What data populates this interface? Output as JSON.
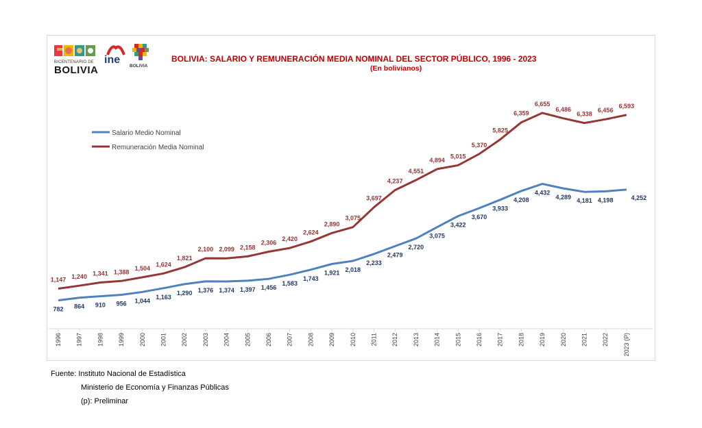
{
  "header": {
    "title": "BOLIVIA: SALARIO Y REMUNERACIÓN MEDIA NOMINAL DEL SECTOR PÚBLICO, 1996 - 2023",
    "subtitle": "(En bolivianos)"
  },
  "logos": {
    "bicentenario_line1": "BICENTENARIO DE",
    "bicentenario_line2": "BOLIVIA",
    "ine": "ine",
    "estado": "BOLIVIA"
  },
  "footer": {
    "line1": "Fuente: Instituto Nacional de Estadística",
    "line2": "Ministerio de Economía y Finanzas Públicas",
    "line3": "(p): Preliminar"
  },
  "colors": {
    "salario": "#4f81bd",
    "remuneracion": "#953735",
    "salario_label": "#1f3864",
    "remuneracion_label": "#943634",
    "title": "#c00000"
  },
  "chart_data": {
    "type": "line",
    "title": "BOLIVIA: SALARIO Y REMUNERACIÓN MEDIA NOMINAL DEL SECTOR PÚBLICO, 1996 - 2023",
    "subtitle": "(En bolivianos)",
    "xlabel": "",
    "ylabel": "",
    "grid": false,
    "legend_position": "top-left",
    "categories": [
      "1996",
      "1997",
      "1998",
      "1999",
      "2000",
      "2001",
      "2002",
      "2003",
      "2004",
      "2005",
      "2006",
      "2007",
      "2008",
      "2009",
      "2010",
      "2011",
      "2012",
      "2013",
      "2014",
      "2015",
      "2016",
      "2017",
      "2018",
      "2019",
      "2020",
      "2021",
      "2022",
      "2023 (P)"
    ],
    "series": [
      {
        "name": "Salario Medio Nominal",
        "labels": [
          "782",
          "864",
          "910",
          "956",
          "1,044",
          "1,163",
          "1,290",
          "1,376",
          "1,374",
          "1,397",
          "1,456",
          "1,583",
          "1,743",
          "1,921",
          "2,018",
          "2,233",
          "2,479",
          "2,720",
          "3,075",
          "3,422",
          "3,670",
          "3,933",
          "4,208",
          "4,432",
          "4,289",
          "4,181",
          "4,198",
          "4,252"
        ],
        "values": [
          782,
          864,
          910,
          956,
          1044,
          1163,
          1290,
          1376,
          1374,
          1397,
          1456,
          1583,
          1743,
          1921,
          2018,
          2233,
          2479,
          2720,
          3075,
          3422,
          3670,
          3933,
          4208,
          4432,
          4289,
          4181,
          4198,
          4252
        ]
      },
      {
        "name": "Remuneración Media Nominal",
        "labels": [
          "1,147",
          "1,240",
          "1,341",
          "1,388",
          "1,504",
          "1,624",
          "1,821",
          "2,100",
          "2,099",
          "2,158",
          "2,306",
          "2,420",
          "2,624",
          "2,890",
          "3,075",
          "3,697",
          "4,237",
          "4,551",
          "4,894",
          "5,015",
          "5,370",
          "5,825",
          "6,359",
          "6,655",
          "6,486",
          "6,338",
          "6,456",
          "6,593"
        ],
        "values": [
          1147,
          1240,
          1341,
          1388,
          1504,
          1624,
          1821,
          2100,
          2099,
          2158,
          2306,
          2420,
          2624,
          2890,
          3075,
          3697,
          4237,
          4551,
          4894,
          5015,
          5370,
          5825,
          6359,
          6655,
          6486,
          6338,
          6456,
          6593
        ]
      }
    ]
  }
}
